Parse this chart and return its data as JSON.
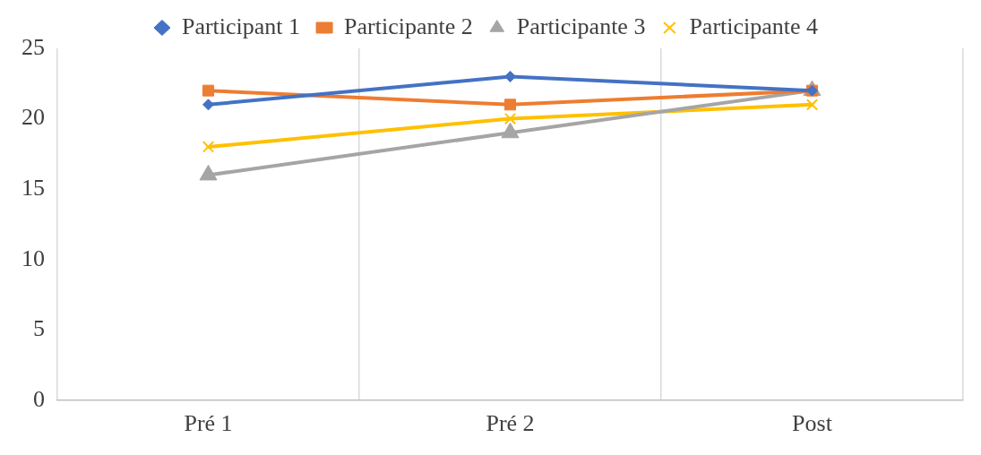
{
  "chart_data": {
    "type": "line",
    "categories": [
      "Pré 1",
      "Pré 2",
      "Post"
    ],
    "series": [
      {
        "name": "Participant 1",
        "color": "#4472c4",
        "marker": "diamond",
        "values": [
          21,
          23,
          22
        ]
      },
      {
        "name": "Participante 2",
        "color": "#ed7d31",
        "marker": "square",
        "values": [
          22,
          21,
          22
        ]
      },
      {
        "name": "Participante 3",
        "color": "#a5a5a5",
        "marker": "triangle",
        "values": [
          16,
          19,
          22
        ]
      },
      {
        "name": "Participante 4",
        "color": "#ffc000",
        "marker": "cross",
        "values": [
          18,
          20,
          21
        ]
      }
    ],
    "ylim": [
      0,
      25
    ],
    "yticks": [
      0,
      5,
      10,
      15,
      20,
      25
    ],
    "grid": "x",
    "legend": "top",
    "line_style": "solid"
  }
}
